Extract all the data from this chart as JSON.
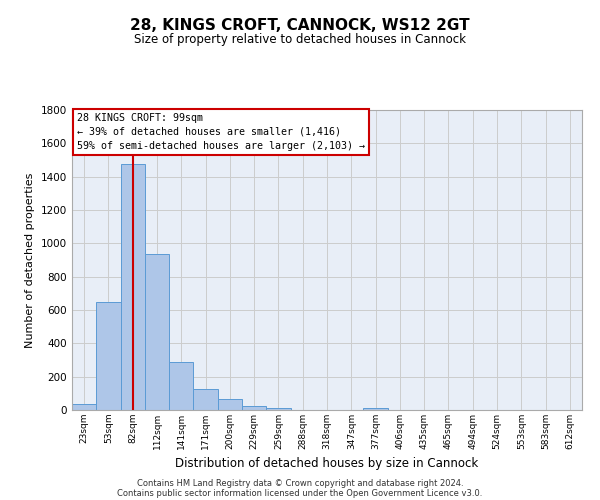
{
  "title": "28, KINGS CROFT, CANNOCK, WS12 2GT",
  "subtitle": "Size of property relative to detached houses in Cannock",
  "xlabel": "Distribution of detached houses by size in Cannock",
  "ylabel": "Number of detached properties",
  "categories": [
    "23sqm",
    "53sqm",
    "82sqm",
    "112sqm",
    "141sqm",
    "171sqm",
    "200sqm",
    "229sqm",
    "259sqm",
    "288sqm",
    "318sqm",
    "347sqm",
    "377sqm",
    "406sqm",
    "435sqm",
    "465sqm",
    "494sqm",
    "524sqm",
    "553sqm",
    "583sqm",
    "612sqm"
  ],
  "values": [
    38,
    650,
    1475,
    935,
    290,
    125,
    65,
    22,
    15,
    0,
    0,
    0,
    14,
    0,
    0,
    0,
    0,
    0,
    0,
    0,
    0
  ],
  "bar_color": "#aec6e8",
  "bar_edge_color": "#5b9bd5",
  "vline_x": 2,
  "vline_color": "#cc0000",
  "annotation_line1": "28 KINGS CROFT: 99sqm",
  "annotation_line2": "← 39% of detached houses are smaller (1,416)",
  "annotation_line3": "59% of semi-detached houses are larger (2,103) →",
  "annotation_box_color": "#cc0000",
  "annotation_box_bg": "#ffffff",
  "ylim": [
    0,
    1800
  ],
  "yticks": [
    0,
    200,
    400,
    600,
    800,
    1000,
    1200,
    1400,
    1600,
    1800
  ],
  "grid_color": "#cccccc",
  "bg_color": "#e8eef7",
  "footer1": "Contains HM Land Registry data © Crown copyright and database right 2024.",
  "footer2": "Contains public sector information licensed under the Open Government Licence v3.0."
}
